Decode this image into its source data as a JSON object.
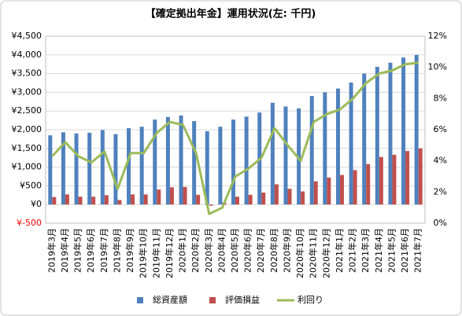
{
  "chart_data": {
    "type": "bar_line",
    "title": "【確定拠出年金】運用状況(左: 千円)",
    "categories": [
      "2019年3月",
      "2019年4月",
      "2019年5月",
      "2019年6月",
      "2019年7月",
      "2019年8月",
      "2019年9月",
      "2019年10月",
      "2019年11月",
      "2019年12月",
      "2020年1月",
      "2020年2月",
      "2020年3月",
      "2020年4月",
      "2020年5月",
      "2020年6月",
      "2020年7月",
      "2020年8月",
      "2020年9月",
      "2020年10月",
      "2020年11月",
      "2020年12月",
      "2021年1月",
      "2021年2月",
      "2021年3月",
      "2021年4月",
      "2021年5月",
      "2021年6月",
      "2021年7月"
    ],
    "series": [
      {
        "name": "総資産額",
        "color": "#4f81bd",
        "kind": "bar",
        "values": [
          1850,
          1930,
          1900,
          1920,
          1990,
          1880,
          2040,
          2080,
          2270,
          2340,
          2380,
          2230,
          1960,
          2080,
          2270,
          2350,
          2460,
          2720,
          2620,
          2570,
          2900,
          3000,
          3100,
          3260,
          3500,
          3680,
          3790,
          3930,
          4000
        ]
      },
      {
        "name": "評価損益",
        "color": "#c0504d",
        "kind": "bar",
        "values": [
          200,
          270,
          210,
          210,
          250,
          120,
          270,
          270,
          400,
          460,
          470,
          260,
          -30,
          50,
          210,
          260,
          320,
          540,
          420,
          350,
          620,
          720,
          790,
          920,
          1080,
          1270,
          1330,
          1430,
          1500
        ]
      },
      {
        "name": "利回り",
        "color": "#9bbb59",
        "kind": "line",
        "axis": "y2",
        "values": [
          4.3,
          5.2,
          4.3,
          3.9,
          4.6,
          2.2,
          4.5,
          4.5,
          5.8,
          6.5,
          6.3,
          4.5,
          0.6,
          1.0,
          3.0,
          3.5,
          4.2,
          6.1,
          5.0,
          4.0,
          6.5,
          7.0,
          7.3,
          8.0,
          9.0,
          9.6,
          9.8,
          10.2,
          10.3
        ]
      }
    ],
    "ylim": [
      -500,
      4500
    ],
    "yticks": [
      {
        "value": -500,
        "label": "¥-500"
      },
      {
        "value": 0,
        "label": "¥0"
      },
      {
        "value": 500,
        "label": "¥500"
      },
      {
        "value": 1000,
        "label": "¥1,000"
      },
      {
        "value": 1500,
        "label": "¥1,500"
      },
      {
        "value": 2000,
        "label": "¥2,000"
      },
      {
        "value": 2500,
        "label": "¥2,500"
      },
      {
        "value": 3000,
        "label": "¥3,000"
      },
      {
        "value": 3500,
        "label": "¥3,500"
      },
      {
        "value": 4000,
        "label": "¥4,000"
      },
      {
        "value": 4500,
        "label": "¥4,500"
      }
    ],
    "negative_tick_color": "#ff0000",
    "y2lim": [
      0,
      12
    ],
    "y2ticks": [
      {
        "value": 0,
        "label": "0%"
      },
      {
        "value": 2,
        "label": "2%"
      },
      {
        "value": 4,
        "label": "4%"
      },
      {
        "value": 6,
        "label": "6%"
      },
      {
        "value": 8,
        "label": "8%"
      },
      {
        "value": 10,
        "label": "10%"
      },
      {
        "value": 12,
        "label": "12%"
      }
    ],
    "grid": true,
    "legend": "bottom"
  }
}
